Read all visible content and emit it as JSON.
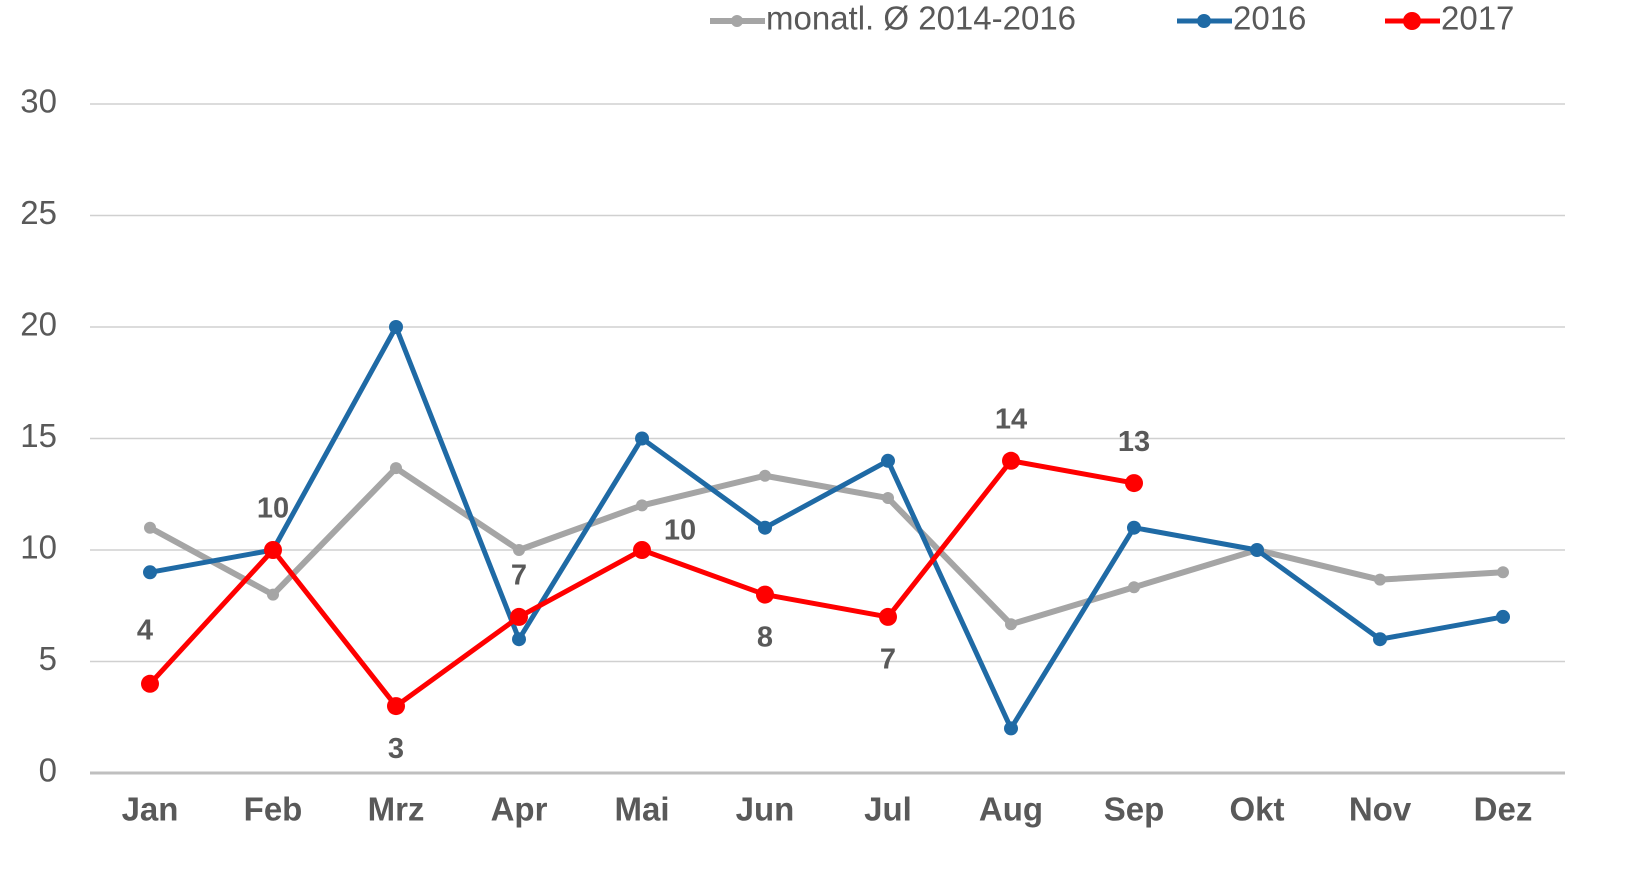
{
  "chart_data": {
    "type": "line",
    "categories": [
      "Jan",
      "Feb",
      "Mrz",
      "Apr",
      "Mai",
      "Jun",
      "Jul",
      "Aug",
      "Sep",
      "Okt",
      "Nov",
      "Dez"
    ],
    "series": [
      {
        "name": "monatl. Ø 2014-2016",
        "color": "#a5a5a5",
        "values": [
          11,
          8,
          13.67,
          10,
          12,
          13.33,
          12.33,
          6.67,
          8.33,
          10,
          8.67,
          9
        ]
      },
      {
        "name": "2016",
        "color": "#1f6aa5",
        "values": [
          9,
          10,
          20,
          6,
          15,
          11,
          14,
          2,
          11,
          10,
          6,
          7
        ]
      },
      {
        "name": "2017",
        "color": "#ff0000",
        "values": [
          4,
          10,
          3,
          7,
          10,
          8,
          7,
          14,
          13,
          null,
          null,
          null
        ]
      }
    ],
    "ylim": [
      0,
      30
    ],
    "yticks": [
      0,
      5,
      10,
      15,
      20,
      25,
      30
    ],
    "grid": true,
    "legend": "top"
  }
}
